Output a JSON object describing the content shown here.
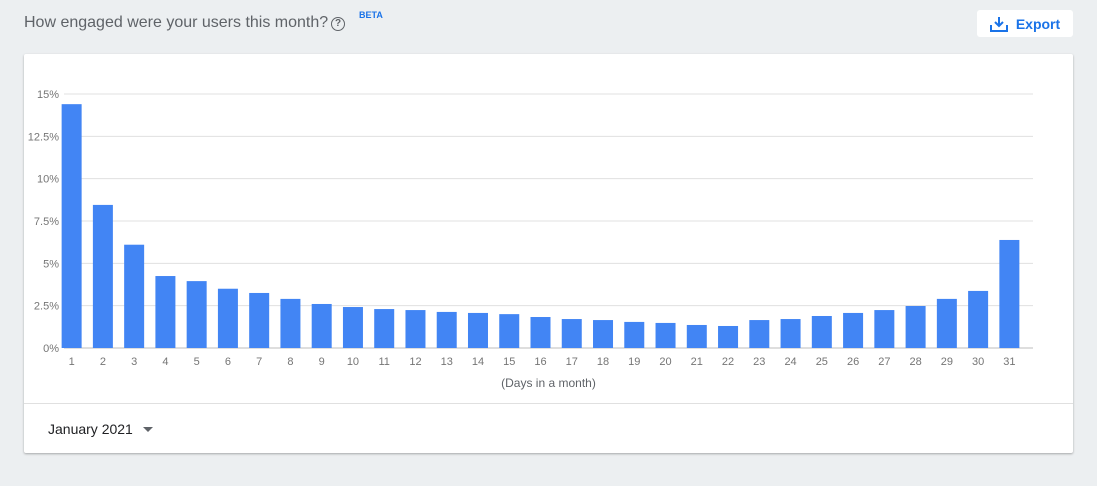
{
  "header": {
    "title": "How engaged were your users this month?",
    "help_icon": "help-circle-icon",
    "badge": "BETA",
    "export_label": "Export",
    "export_icon": "download-icon"
  },
  "footer": {
    "month_selected": "January 2021"
  },
  "colors": {
    "bar": "#4285f4",
    "accent": "#1a73e8"
  },
  "chart_data": {
    "type": "bar",
    "xlabel": "(Days in a month)",
    "ylabel": "",
    "ylim": [
      0,
      15
    ],
    "yticks": [
      0,
      2.5,
      5,
      7.5,
      10,
      12.5,
      15
    ],
    "ytick_labels": [
      "0%",
      "2.5%",
      "5%",
      "7.5%",
      "10%",
      "12.5%",
      "15%"
    ],
    "grid": true,
    "categories": [
      "1",
      "2",
      "3",
      "4",
      "5",
      "6",
      "7",
      "8",
      "9",
      "10",
      "11",
      "12",
      "13",
      "14",
      "15",
      "16",
      "17",
      "18",
      "19",
      "20",
      "21",
      "22",
      "23",
      "24",
      "25",
      "26",
      "27",
      "28",
      "29",
      "30",
      "31"
    ],
    "values": [
      14.4,
      8.45,
      6.1,
      4.25,
      3.95,
      3.5,
      3.25,
      2.9,
      2.6,
      2.42,
      2.3,
      2.24,
      2.13,
      2.07,
      2.0,
      1.83,
      1.71,
      1.65,
      1.54,
      1.48,
      1.36,
      1.3,
      1.65,
      1.71,
      1.89,
      2.07,
      2.24,
      2.48,
      2.9,
      3.37,
      6.38
    ]
  }
}
